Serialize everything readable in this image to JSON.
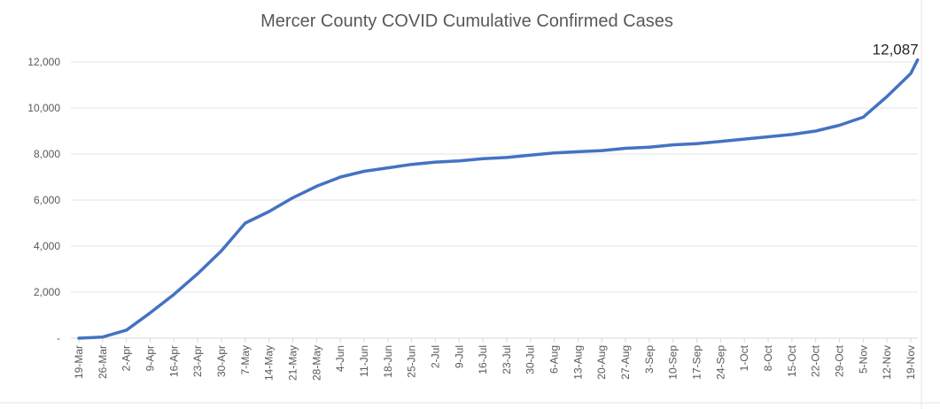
{
  "chart_data": {
    "type": "line",
    "title": "Mercer County COVID Cumulative Confirmed Cases",
    "xlabel": "",
    "ylabel": "",
    "ylim": [
      0,
      12000
    ],
    "yticks": [
      0,
      2000,
      4000,
      6000,
      8000,
      10000,
      12000
    ],
    "ytick_labels": [
      "-",
      "2,000",
      "4,000",
      "6,000",
      "8,000",
      "10,000",
      "12,000"
    ],
    "grid": "horizontal",
    "line_color": "#4472C4",
    "xtick_labels": [
      "19-Mar",
      "26-Mar",
      "2-Apr",
      "9-Apr",
      "16-Apr",
      "23-Apr",
      "30-Apr",
      "7-May",
      "14-May",
      "21-May",
      "28-May",
      "4-Jun",
      "11-Jun",
      "18-Jun",
      "25-Jun",
      "2-Jul",
      "9-Jul",
      "16-Jul",
      "23-Jul",
      "30-Jul",
      "6-Aug",
      "13-Aug",
      "20-Aug",
      "27-Aug",
      "3-Sep",
      "10-Sep",
      "17-Sep",
      "24-Sep",
      "1-Oct",
      "8-Oct",
      "15-Oct",
      "22-Oct",
      "29-Oct",
      "5-Nov",
      "12-Nov",
      "19-Nov"
    ],
    "series": [
      {
        "name": "Cumulative Confirmed Cases",
        "day_offsets": [
          0,
          7,
          14,
          21,
          28,
          35,
          42,
          49,
          56,
          63,
          70,
          77,
          84,
          91,
          98,
          105,
          112,
          119,
          126,
          133,
          140,
          147,
          154,
          161,
          168,
          175,
          182,
          189,
          196,
          203,
          210,
          217,
          224,
          231,
          238,
          245,
          247
        ],
        "values": [
          0,
          50,
          350,
          1100,
          1900,
          2800,
          3800,
          5000,
          5500,
          6100,
          6600,
          7000,
          7250,
          7400,
          7550,
          7650,
          7700,
          7800,
          7850,
          7950,
          8050,
          8100,
          8150,
          8250,
          8300,
          8400,
          8450,
          8550,
          8650,
          8750,
          8850,
          9000,
          9250,
          9600,
          10500,
          11500,
          12087
        ]
      }
    ],
    "annotations": [
      {
        "text": "12,087",
        "at": "last-point"
      }
    ]
  }
}
